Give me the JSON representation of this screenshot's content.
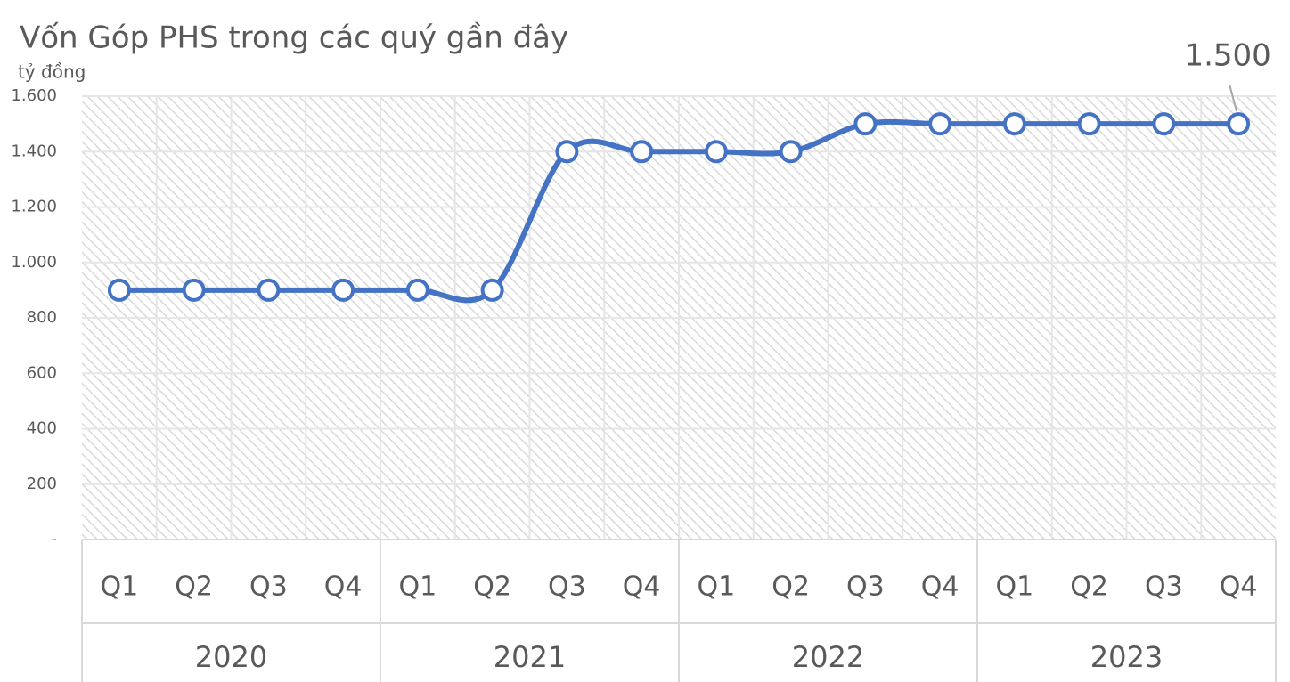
{
  "chart_data": {
    "type": "line",
    "title": "Vốn Góp PHS trong các quý gần đây",
    "y_label": "tỷ đồng",
    "categories": [
      "Q1",
      "Q2",
      "Q3",
      "Q4",
      "Q1",
      "Q2",
      "Q3",
      "Q4",
      "Q1",
      "Q2",
      "Q3",
      "Q4",
      "Q1",
      "Q2",
      "Q3",
      "Q4"
    ],
    "groups": [
      "2020",
      "2021",
      "2022",
      "2023"
    ],
    "series": [
      {
        "name": "Vốn Góp",
        "color": "#4472c4",
        "values": [
          900,
          900,
          900,
          900,
          900,
          900,
          1400,
          1400,
          1400,
          1400,
          1500,
          1500,
          1500,
          1500,
          1500,
          1500
        ],
        "value_labels": [
          null,
          null,
          null,
          null,
          null,
          null,
          null,
          null,
          null,
          null,
          null,
          null,
          null,
          null,
          null,
          "1.500"
        ]
      }
    ],
    "ylim": [
      0,
      1600
    ],
    "yticks": [
      {
        "value": 0,
        "label": "-"
      },
      200,
      400,
      600,
      800,
      {
        "value": 1000,
        "label": "1.000"
      },
      {
        "value": 1200,
        "label": "1.200"
      },
      {
        "value": 1400,
        "label": "1.400"
      },
      {
        "value": 1600,
        "label": "1.600"
      }
    ],
    "grid": true,
    "smooth": true
  }
}
